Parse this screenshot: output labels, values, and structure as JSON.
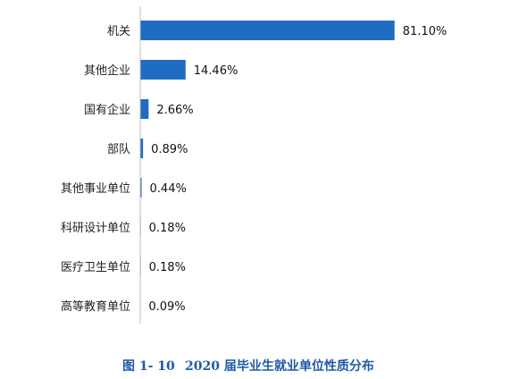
{
  "chart_data": {
    "type": "bar",
    "orientation": "horizontal",
    "categories": [
      "机关",
      "其他企业",
      "国有企业",
      "部队",
      "其他事业单位",
      "科研设计单位",
      "医疗卫生单位",
      "高等教育单位"
    ],
    "values": [
      81.1,
      14.46,
      2.66,
      0.89,
      0.44,
      0.18,
      0.18,
      0.09
    ],
    "value_suffix": "%",
    "data_labels": true,
    "xlim": [
      0,
      100
    ],
    "grid": false,
    "legend": "none",
    "bar_color": "#1f6cc1",
    "axis_color": "#bfbfbf"
  },
  "caption": {
    "figure_number": "图 1- 10",
    "title": "2020 届毕业生就业单位性质分布",
    "color": "#1f5aa6"
  }
}
